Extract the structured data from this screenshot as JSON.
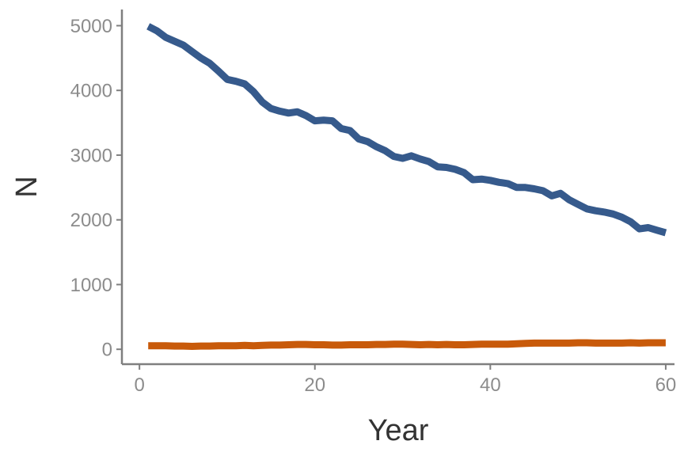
{
  "chart_data": {
    "type": "line",
    "title": "",
    "xlabel": "Year",
    "ylabel": "N",
    "xlim": [
      -2,
      61
    ],
    "ylim": [
      -230,
      5250
    ],
    "x_ticks": [
      0,
      20,
      40,
      60
    ],
    "y_ticks": [
      0,
      1000,
      2000,
      3000,
      4000,
      5000
    ],
    "x_tick_labels": [
      "0",
      "20",
      "40",
      "60"
    ],
    "y_tick_labels": [
      "0",
      "1000",
      "2000",
      "3000",
      "4000",
      "5000"
    ],
    "grid": false,
    "legend": "none",
    "x": [
      1,
      2,
      3,
      4,
      5,
      6,
      7,
      8,
      9,
      10,
      11,
      12,
      13,
      14,
      15,
      16,
      17,
      18,
      19,
      20,
      21,
      22,
      23,
      24,
      25,
      26,
      27,
      28,
      29,
      30,
      31,
      32,
      33,
      34,
      35,
      36,
      37,
      38,
      39,
      40,
      41,
      42,
      43,
      44,
      45,
      46,
      47,
      48,
      49,
      50,
      51,
      52,
      53,
      54,
      55,
      56,
      57,
      58,
      59,
      60
    ],
    "series": [
      {
        "color": "#365a8c",
        "values": [
          4990,
          4920,
          4820,
          4760,
          4700,
          4600,
          4500,
          4420,
          4300,
          4170,
          4140,
          4100,
          3980,
          3820,
          3720,
          3680,
          3650,
          3670,
          3610,
          3530,
          3540,
          3530,
          3410,
          3380,
          3250,
          3210,
          3130,
          3070,
          2980,
          2950,
          2990,
          2940,
          2900,
          2820,
          2810,
          2780,
          2730,
          2620,
          2630,
          2610,
          2580,
          2560,
          2500,
          2500,
          2480,
          2450,
          2370,
          2410,
          2310,
          2240,
          2170,
          2140,
          2120,
          2090,
          2040,
          1970,
          1860,
          1880,
          1840,
          1800
        ]
      },
      {
        "color": "#c85a0a",
        "values": [
          55,
          55,
          55,
          50,
          50,
          45,
          50,
          50,
          55,
          55,
          55,
          60,
          55,
          60,
          65,
          65,
          70,
          75,
          75,
          70,
          70,
          65,
          65,
          70,
          70,
          70,
          75,
          75,
          80,
          80,
          75,
          70,
          75,
          70,
          75,
          70,
          70,
          75,
          80,
          80,
          80,
          80,
          85,
          90,
          95,
          95,
          95,
          95,
          95,
          100,
          100,
          95,
          95,
          95,
          95,
          100,
          95,
          100,
          100,
          100
        ]
      }
    ]
  }
}
